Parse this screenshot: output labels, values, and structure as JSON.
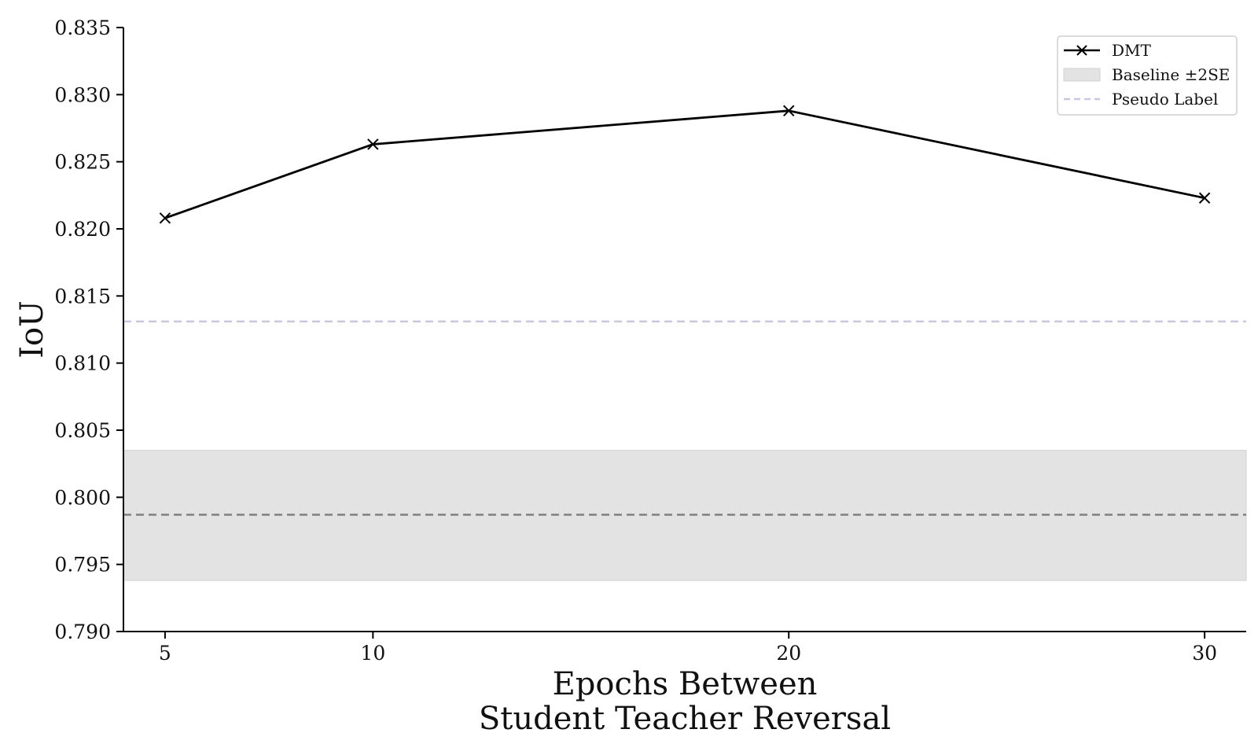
{
  "chart_data": {
    "type": "line",
    "title": "",
    "xlabel": "Epochs Between",
    "xlabel_line2": "Student Teacher Reversal",
    "ylabel": "IoU",
    "x": [
      5,
      10,
      20,
      30
    ],
    "xticks": [
      5,
      10,
      20,
      30
    ],
    "xtick_labels": [
      "5",
      "10",
      "20",
      "30"
    ],
    "xlim": [
      4,
      31
    ],
    "ylim": [
      0.79,
      0.835
    ],
    "yticks": [
      0.79,
      0.795,
      0.8,
      0.805,
      0.81,
      0.815,
      0.82,
      0.825,
      0.83,
      0.835
    ],
    "ytick_labels": [
      "0.790",
      "0.795",
      "0.800",
      "0.805",
      "0.810",
      "0.815",
      "0.820",
      "0.825",
      "0.830",
      "0.835"
    ],
    "series": [
      {
        "name": "DMT",
        "values": [
          0.8208,
          0.8263,
          0.8288,
          0.8223
        ],
        "color": "#000000",
        "marker": "x"
      }
    ],
    "baseline": {
      "name": "Baseline ±2SE",
      "mean": 0.7987,
      "lower": 0.7938,
      "upper": 0.8035,
      "band_color": "#e3e3e3",
      "line_color": "#808080"
    },
    "pseudo_label": {
      "name": "Pseudo Label",
      "value": 0.8131,
      "color": "#c9c8e3"
    },
    "legend": {
      "position": "top-right",
      "entries": [
        "DMT",
        "Baseline ±2SE",
        "Pseudo Label"
      ]
    },
    "grid": false
  }
}
